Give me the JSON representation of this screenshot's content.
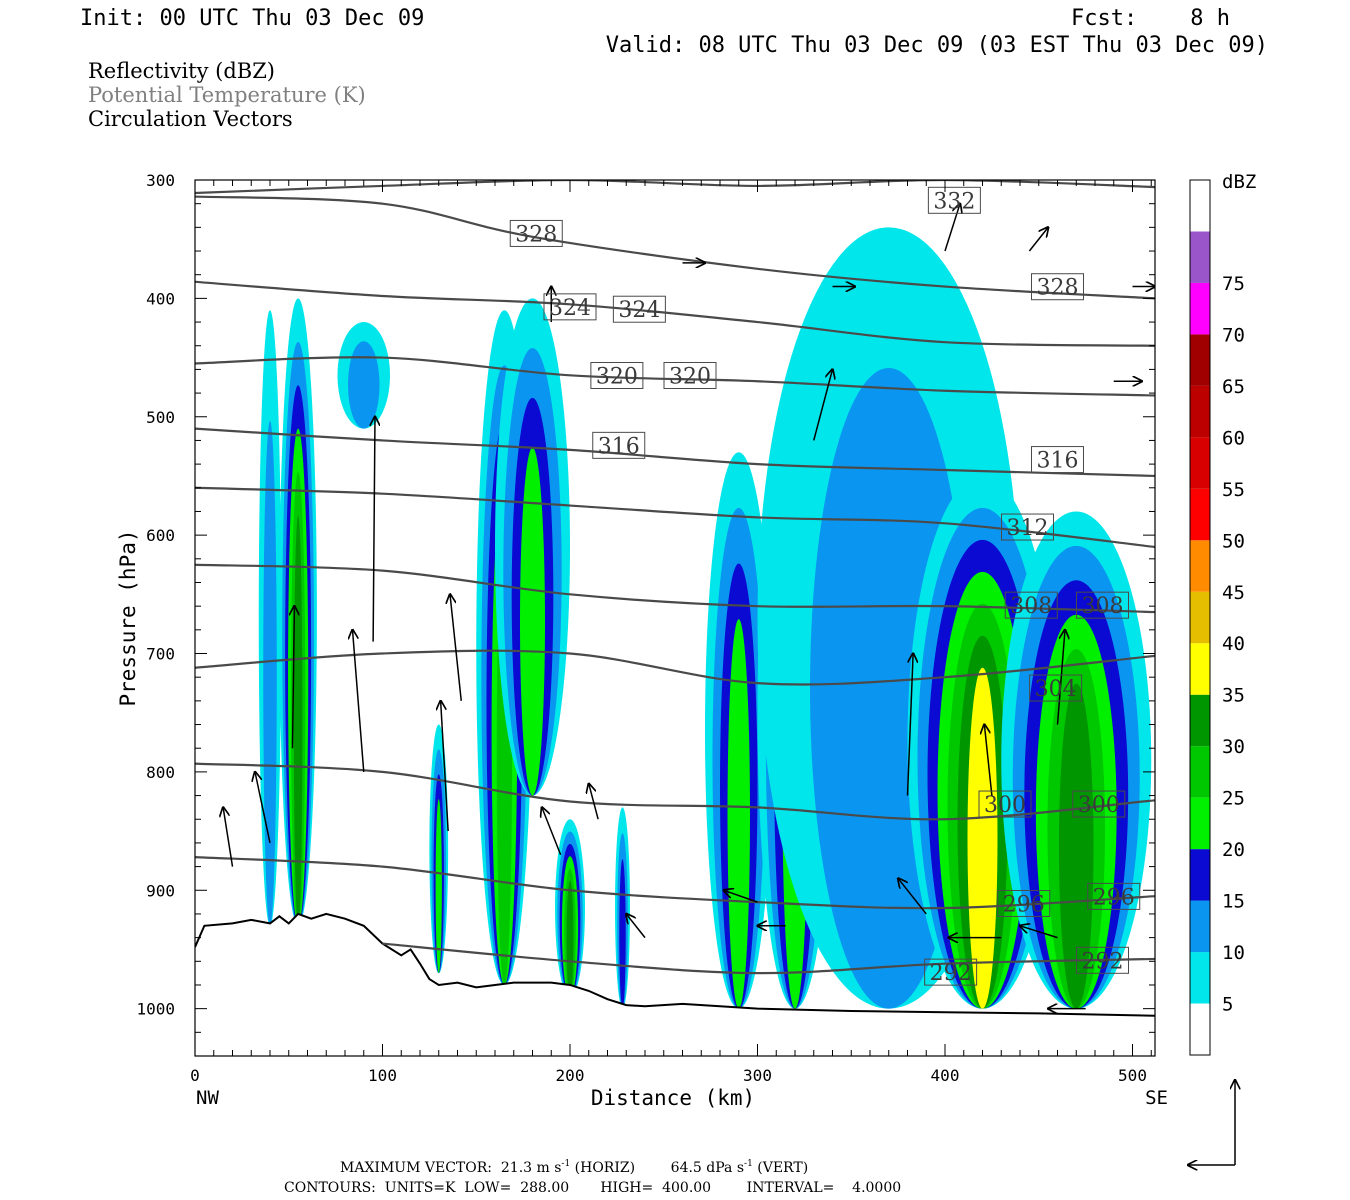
{
  "header": {
    "init": "Init: 00 UTC Thu 03 Dec 09",
    "fcst": "Fcst:    8 h",
    "valid": "Valid: 08 UTC Thu 03 Dec 09 (03 EST Thu 03 Dec 09)",
    "fields": [
      {
        "text": "Reflectivity (dBZ)",
        "color": "#000000"
      },
      {
        "text": "Potential Temperature (K)",
        "color": "#808080"
      },
      {
        "text": "Circulation Vectors",
        "color": "#000000"
      }
    ]
  },
  "footer": {
    "line1_prefix": "MAXIMUM VECTOR:  21.3 m s",
    "line1_sup1": "-1",
    "line1_mid": " (HORIZ)        64.5 dPa s",
    "line1_sup2": "-1",
    "line1_suffix": " (VERT)",
    "line2": "CONTOURS:  UNITS=K  LOW=  288.00       HIGH=  400.00        INTERVAL=    4.0000"
  },
  "colorbar": {
    "unit": "dBZ",
    "levels": [
      {
        "label": "",
        "color": "#ffffff"
      },
      {
        "label": "5",
        "color": "#00e6eb"
      },
      {
        "label": "10",
        "color": "#0a96f0"
      },
      {
        "label": "15",
        "color": "#0a0ad2"
      },
      {
        "label": "20",
        "color": "#00f000"
      },
      {
        "label": "25",
        "color": "#00c800"
      },
      {
        "label": "30",
        "color": "#009600"
      },
      {
        "label": "35",
        "color": "#ffff00"
      },
      {
        "label": "40",
        "color": "#e6be00"
      },
      {
        "label": "45",
        "color": "#ff8c00"
      },
      {
        "label": "50",
        "color": "#ff0000"
      },
      {
        "label": "55",
        "color": "#d80000"
      },
      {
        "label": "60",
        "color": "#bc0000"
      },
      {
        "label": "65",
        "color": "#a00000"
      },
      {
        "label": "70",
        "color": "#ff00ff"
      },
      {
        "label": "75",
        "color": "#9955c9"
      },
      {
        "label": "",
        "color": "#ffffff"
      }
    ]
  },
  "chart_data": {
    "type": "heatmap",
    "title": "Reflectivity (dBZ), Potential Temperature (K), Circulation Vectors",
    "xlabel": "Distance (km)",
    "ylabel": "Pressure (hPa)",
    "xlim": [
      0,
      512
    ],
    "ylim": [
      300,
      1040
    ],
    "y_axis_inverted": true,
    "xticks": [
      0,
      100,
      200,
      300,
      400,
      500
    ],
    "yticks": [
      300,
      400,
      500,
      600,
      700,
      800,
      900,
      1000
    ],
    "x_end_labels": {
      "left": "NW",
      "right": "SE"
    },
    "terrain": [
      [
        0,
        948
      ],
      [
        5,
        930
      ],
      [
        20,
        928
      ],
      [
        30,
        925
      ],
      [
        40,
        928
      ],
      [
        45,
        922
      ],
      [
        50,
        928
      ],
      [
        55,
        920
      ],
      [
        62,
        924
      ],
      [
        70,
        920
      ],
      [
        80,
        924
      ],
      [
        90,
        930
      ],
      [
        100,
        945
      ],
      [
        110,
        955
      ],
      [
        115,
        950
      ],
      [
        120,
        962
      ],
      [
        125,
        975
      ],
      [
        130,
        980
      ],
      [
        140,
        978
      ],
      [
        150,
        982
      ],
      [
        160,
        980
      ],
      [
        170,
        978
      ],
      [
        180,
        978
      ],
      [
        190,
        978
      ],
      [
        200,
        980
      ],
      [
        210,
        985
      ],
      [
        220,
        992
      ],
      [
        230,
        997
      ],
      [
        240,
        998
      ],
      [
        260,
        996
      ],
      [
        280,
        998
      ],
      [
        300,
        1000
      ],
      [
        350,
        1002
      ],
      [
        400,
        1003
      ],
      [
        450,
        1004
      ],
      [
        512,
        1006
      ]
    ],
    "reflectivity_cells": [
      {
        "x": 40,
        "p": [
          410,
          930
        ],
        "half_width_km": 6,
        "max_dbz": 10
      },
      {
        "x": 55,
        "p": [
          400,
          930
        ],
        "half_width_km": 10,
        "max_dbz": 30
      },
      {
        "x": 90,
        "p": [
          420,
          510
        ],
        "half_width_km": 14,
        "max_dbz": 10
      },
      {
        "x": 130,
        "p": [
          760,
          970
        ],
        "half_width_km": 5,
        "max_dbz": 20
      },
      {
        "x": 165,
        "p": [
          410,
          980
        ],
        "half_width_km": 15,
        "max_dbz": 25
      },
      {
        "x": 180,
        "p": [
          400,
          820
        ],
        "half_width_km": 20,
        "max_dbz": 20
      },
      {
        "x": 200,
        "p": [
          840,
          990
        ],
        "half_width_km": 8,
        "max_dbz": 30
      },
      {
        "x": 228,
        "p": [
          830,
          1000
        ],
        "half_width_km": 4,
        "max_dbz": 15
      },
      {
        "x": 290,
        "p": [
          530,
          1000
        ],
        "half_width_km": 18,
        "max_dbz": 20
      },
      {
        "x": 320,
        "p": [
          500,
          1000
        ],
        "half_width_km": 20,
        "max_dbz": 20
      },
      {
        "x": 370,
        "p": [
          340,
          1000
        ],
        "half_width_km": 70,
        "max_dbz": 10
      },
      {
        "x": 420,
        "p": [
          550,
          1000
        ],
        "half_width_km": 40,
        "max_dbz": 35
      },
      {
        "x": 470,
        "p": [
          580,
          1000
        ],
        "half_width_km": 40,
        "max_dbz": 30
      }
    ],
    "theta_contours": [
      {
        "theta": 332,
        "x": [
          0,
          100,
          200,
          300,
          400,
          512
        ],
        "p": [
          311,
          305,
          300,
          305,
          300,
          306
        ],
        "labels": [
          {
            "x": 405,
            "p": 318
          }
        ]
      },
      {
        "theta": 328,
        "x": [
          0,
          100,
          180,
          300,
          400,
          512
        ],
        "p": [
          314,
          320,
          348,
          375,
          390,
          400
        ],
        "labels": [
          {
            "x": 182,
            "p": 346
          },
          {
            "x": 460,
            "p": 391
          }
        ]
      },
      {
        "theta": 324,
        "x": [
          0,
          100,
          200,
          300,
          400,
          512
        ],
        "p": [
          386,
          398,
          405,
          420,
          437,
          440
        ],
        "labels": [
          {
            "x": 200,
            "p": 408
          },
          {
            "x": 237,
            "p": 410
          }
        ]
      },
      {
        "theta": 320,
        "x": [
          0,
          100,
          200,
          300,
          400,
          512
        ],
        "p": [
          455,
          450,
          465,
          470,
          478,
          482
        ],
        "labels": [
          {
            "x": 225,
            "p": 466
          },
          {
            "x": 264,
            "p": 466
          }
        ]
      },
      {
        "theta": 316,
        "x": [
          0,
          100,
          200,
          300,
          400,
          512
        ],
        "p": [
          510,
          520,
          528,
          540,
          545,
          550
        ],
        "labels": [
          {
            "x": 226,
            "p": 525
          },
          {
            "x": 460,
            "p": 537
          }
        ]
      },
      {
        "theta": 312,
        "x": [
          0,
          100,
          200,
          300,
          400,
          512
        ],
        "p": [
          560,
          565,
          575,
          585,
          590,
          610
        ],
        "labels": [
          {
            "x": 444,
            "p": 594
          }
        ]
      },
      {
        "theta": 308,
        "x": [
          0,
          100,
          200,
          300,
          400,
          512
        ],
        "p": [
          625,
          630,
          650,
          660,
          660,
          665
        ],
        "labels": [
          {
            "x": 446,
            "p": 660
          },
          {
            "x": 484,
            "p": 660
          }
        ]
      },
      {
        "theta": 304,
        "x": [
          0,
          100,
          200,
          300,
          400,
          512
        ],
        "p": [
          712,
          700,
          700,
          725,
          720,
          702
        ],
        "labels": [
          {
            "x": 459,
            "p": 730
          }
        ]
      },
      {
        "theta": 300,
        "x": [
          0,
          100,
          200,
          300,
          400,
          512
        ],
        "p": [
          793,
          800,
          825,
          830,
          840,
          824
        ],
        "labels": [
          {
            "x": 432,
            "p": 828
          },
          {
            "x": 482,
            "p": 828
          }
        ]
      },
      {
        "theta": 296,
        "x": [
          0,
          100,
          200,
          300,
          400,
          512
        ],
        "p": [
          872,
          880,
          900,
          910,
          915,
          905
        ],
        "labels": [
          {
            "x": 442,
            "p": 912
          },
          {
            "x": 490,
            "p": 906
          }
        ]
      },
      {
        "theta": 292,
        "x": [
          100,
          200,
          300,
          400,
          512
        ],
        "p": [
          945,
          960,
          970,
          962,
          958
        ],
        "labels": [
          {
            "x": 403,
            "p": 970
          },
          {
            "x": 484,
            "p": 960
          }
        ]
      }
    ],
    "vectors": [
      {
        "x": 52,
        "p": 780,
        "u": 1,
        "w": -120
      },
      {
        "x": 95,
        "p": 690,
        "u": 1,
        "w": -190
      },
      {
        "x": 90,
        "p": 800,
        "u": -6,
        "w": -120
      },
      {
        "x": 135,
        "p": 850,
        "u": -4,
        "w": -110
      },
      {
        "x": 142,
        "p": 740,
        "u": -6,
        "w": -90
      },
      {
        "x": 190,
        "p": 420,
        "u": 0,
        "w": -30
      },
      {
        "x": 330,
        "p": 520,
        "u": 10,
        "w": -60
      },
      {
        "x": 380,
        "p": 820,
        "u": 3,
        "w": -120
      },
      {
        "x": 425,
        "p": 820,
        "u": -4,
        "w": -60
      },
      {
        "x": 460,
        "p": 760,
        "u": 4,
        "w": -80
      },
      {
        "x": 460,
        "p": 940,
        "u": -20,
        "w": -10
      },
      {
        "x": 430,
        "p": 940,
        "u": -28,
        "w": 0
      },
      {
        "x": 475,
        "p": 1000,
        "u": -20,
        "w": 0
      },
      {
        "x": 390,
        "p": 920,
        "u": -15,
        "w": -30
      },
      {
        "x": 400,
        "p": 360,
        "u": 8,
        "w": -40
      },
      {
        "x": 445,
        "p": 360,
        "u": 10,
        "w": -20
      },
      {
        "x": 340,
        "p": 390,
        "u": 12,
        "w": 0
      },
      {
        "x": 500,
        "p": 390,
        "u": 12,
        "w": 0
      },
      {
        "x": 490,
        "p": 470,
        "u": 15,
        "w": 0
      },
      {
        "x": 260,
        "p": 370,
        "u": 12,
        "w": 0
      },
      {
        "x": 300,
        "p": 910,
        "u": -18,
        "w": -10
      },
      {
        "x": 315,
        "p": 930,
        "u": -15,
        "w": 0
      },
      {
        "x": 240,
        "p": 940,
        "u": -10,
        "w": -20
      },
      {
        "x": 195,
        "p": 870,
        "u": -10,
        "w": -40
      },
      {
        "x": 215,
        "p": 840,
        "u": -5,
        "w": -30
      },
      {
        "x": 40,
        "p": 860,
        "u": -8,
        "w": -60
      },
      {
        "x": 20,
        "p": 880,
        "u": -5,
        "w": -50
      }
    ]
  }
}
